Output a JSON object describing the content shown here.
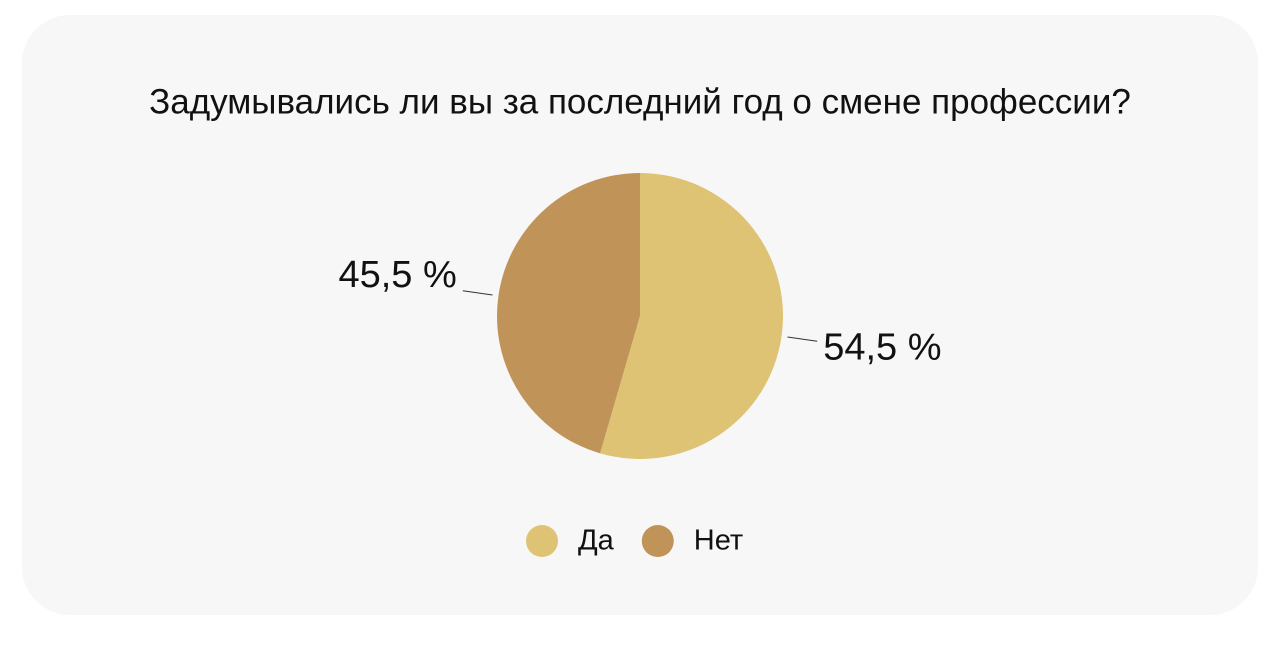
{
  "chart_data": {
    "type": "pie",
    "title": "Задумывались ли вы за последний год о смене профессии?",
    "categories": [
      "Да",
      "Нет"
    ],
    "values": [
      54.5,
      45.5
    ],
    "value_labels": [
      "54,5 %",
      "45,5 %"
    ],
    "colors": [
      "#dfc375",
      "#c09458"
    ],
    "legend": "bottom"
  }
}
